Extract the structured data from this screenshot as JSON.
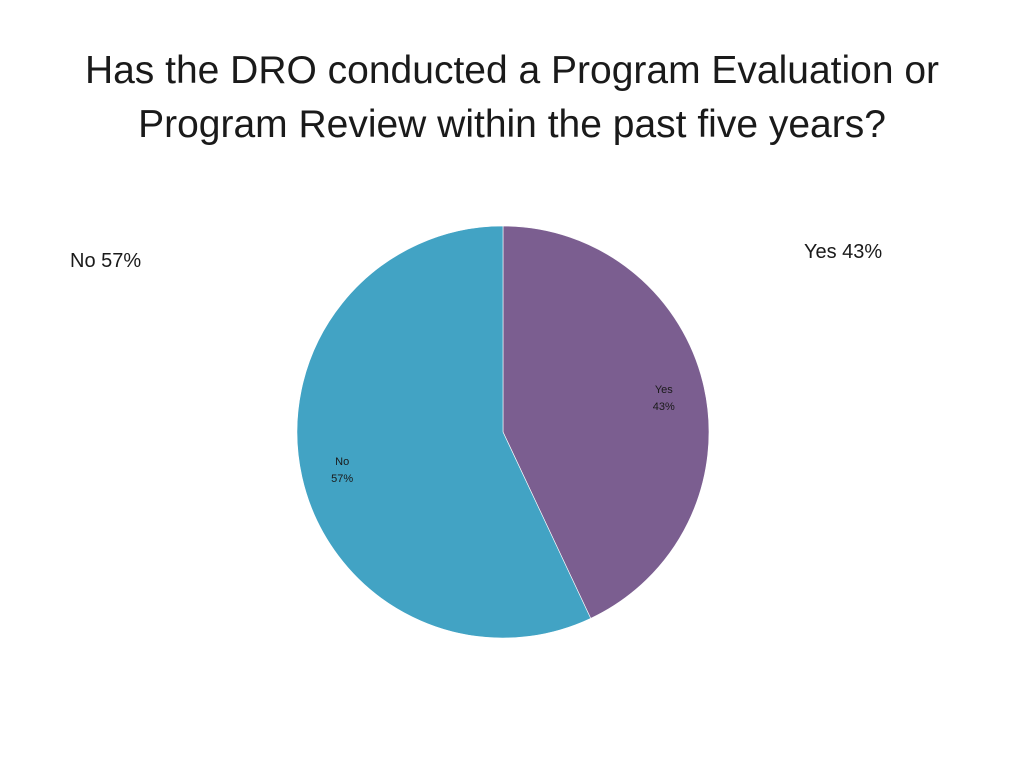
{
  "title": {
    "line1": "Has the DRO conducted a Program Evaluation or",
    "line2": "Program Review within the past five years?"
  },
  "legend_labels": {
    "no": "No 57%",
    "yes": "Yes 43%"
  },
  "chart_data": {
    "type": "pie",
    "title": "Has the DRO conducted a Program Evaluation or Program Review within the past five years?",
    "slices": [
      {
        "name": "Yes",
        "value": 43,
        "label": "43%",
        "color": "#7b5e90"
      },
      {
        "name": "No",
        "value": 57,
        "label": "57%",
        "color": "#42a3c4"
      }
    ],
    "start": "12 o'clock",
    "direction": "clockwise"
  }
}
